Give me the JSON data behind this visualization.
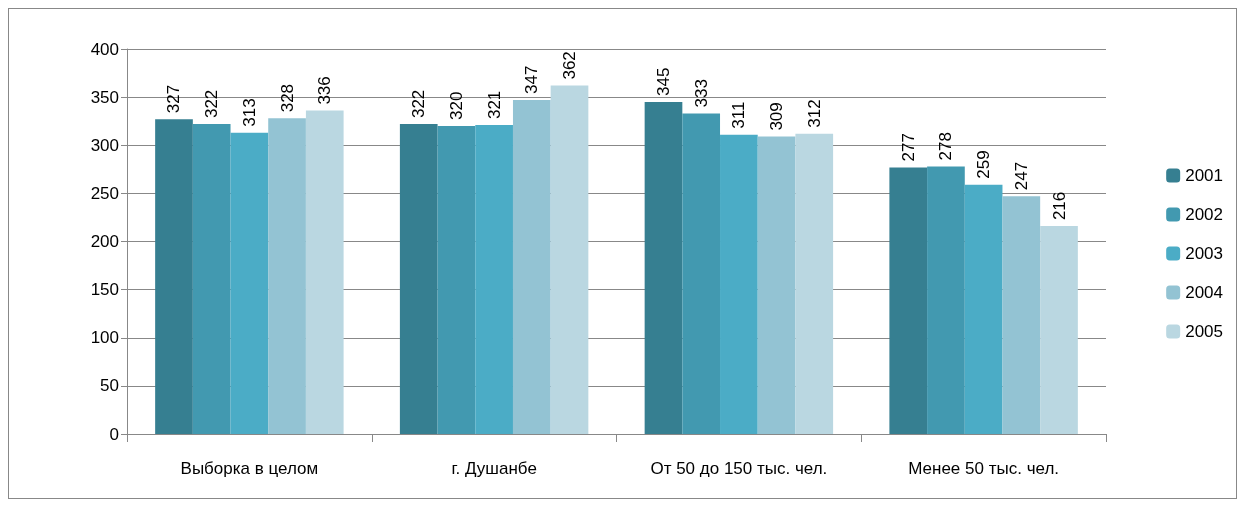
{
  "chart_data": {
    "type": "bar",
    "categories": [
      "Выборка в целом",
      "г. Душанбе",
      "От 50 до 150 тыс. чел.",
      "Менее 50 тыс. чел."
    ],
    "series": [
      {
        "name": "2001",
        "color": "#367f91",
        "values": [
          327,
          322,
          345,
          277
        ]
      },
      {
        "name": "2002",
        "color": "#4299b0",
        "values": [
          322,
          320,
          333,
          278
        ]
      },
      {
        "name": "2003",
        "color": "#4bacc6",
        "values": [
          313,
          321,
          311,
          259
        ]
      },
      {
        "name": "2004",
        "color": "#93c3d3",
        "values": [
          328,
          347,
          309,
          247
        ]
      },
      {
        "name": "2005",
        "color": "#bad7e1",
        "values": [
          336,
          362,
          312,
          216
        ]
      }
    ],
    "ylim": [
      0,
      400
    ],
    "yticks": [
      0,
      50,
      100,
      150,
      200,
      250,
      300,
      350,
      400
    ],
    "grid": "y",
    "legend": "right",
    "data_labels": true
  }
}
